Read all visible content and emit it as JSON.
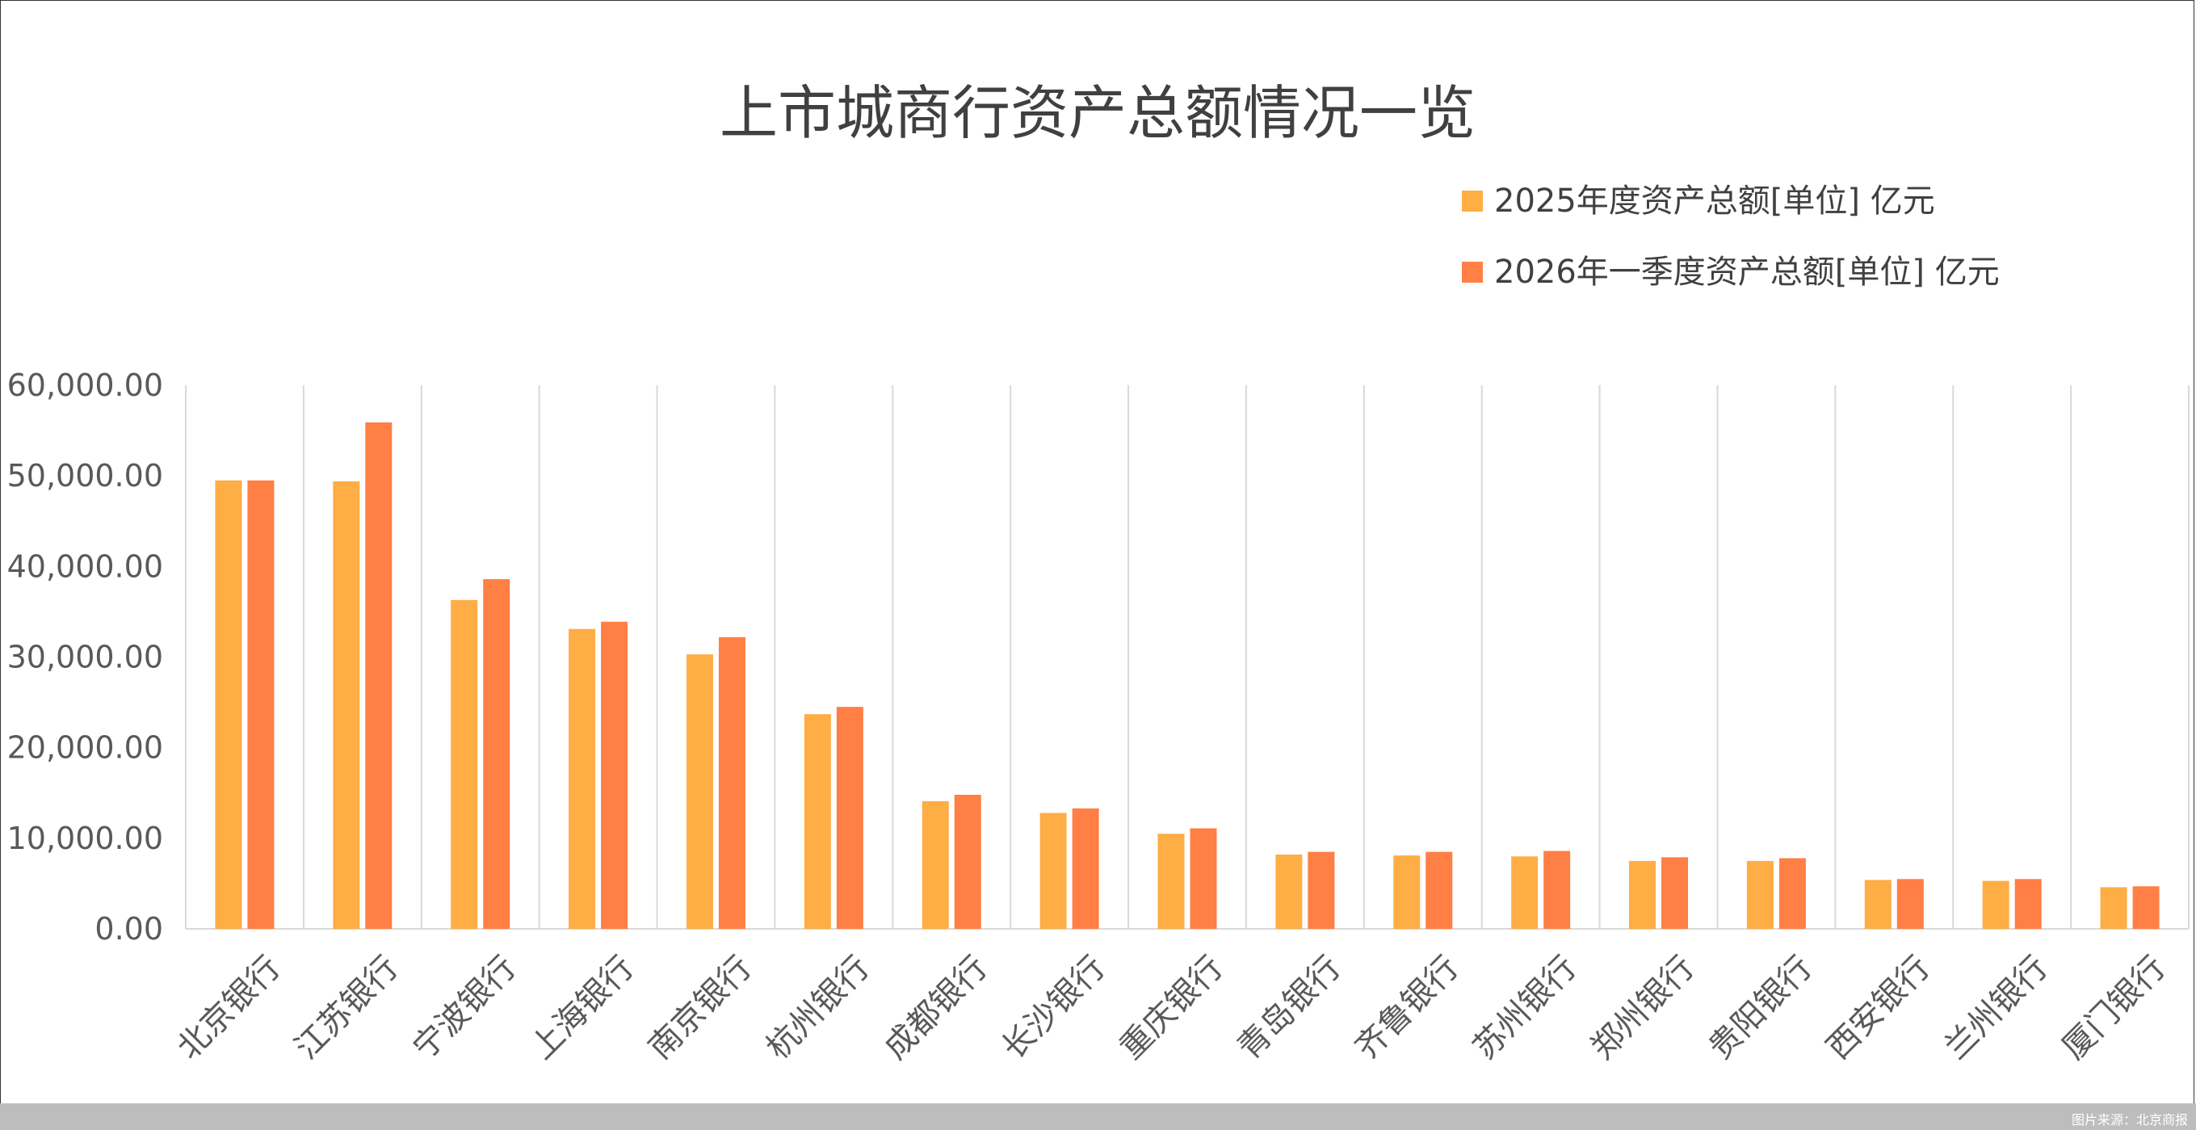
{
  "footer": {
    "credit": "图片来源：北京商报"
  },
  "chart_data": {
    "type": "bar",
    "title": "上市城商行资产总额情况一览",
    "xlabel": "",
    "ylabel": "",
    "ylim": [
      0,
      60000
    ],
    "y_ticks": [
      0,
      10000,
      20000,
      30000,
      40000,
      50000,
      60000
    ],
    "y_tick_labels": [
      "0.00",
      "10,000.00",
      "20,000.00",
      "30,000.00",
      "40,000.00",
      "50,000.00",
      "60,000.00"
    ],
    "grid": "vertical",
    "legend_position": "top-right",
    "categories": [
      "北京银行",
      "江苏银行",
      "宁波银行",
      "上海银行",
      "南京银行",
      "杭州银行",
      "成都银行",
      "长沙银行",
      "重庆银行",
      "青岛银行",
      "齐鲁银行",
      "苏州银行",
      "郑州银行",
      "贵阳银行",
      "西安银行",
      "兰州银行",
      "厦门银行"
    ],
    "series": [
      {
        "name": "2025年度资产总额[单位] 亿元",
        "color": "#ffad45",
        "values": [
          49500,
          49400,
          36300,
          33100,
          30300,
          23700,
          14100,
          12800,
          10500,
          8200,
          8100,
          8000,
          7500,
          7500,
          5400,
          5300,
          4600
        ]
      },
      {
        "name": "2026年一季度资产总额[单位] 亿元",
        "color": "#ff7f44",
        "values": [
          49500,
          55900,
          38600,
          33900,
          32200,
          24500,
          14800,
          13300,
          11100,
          8500,
          8500,
          8600,
          7900,
          7800,
          5500,
          5500,
          4700
        ]
      }
    ]
  }
}
